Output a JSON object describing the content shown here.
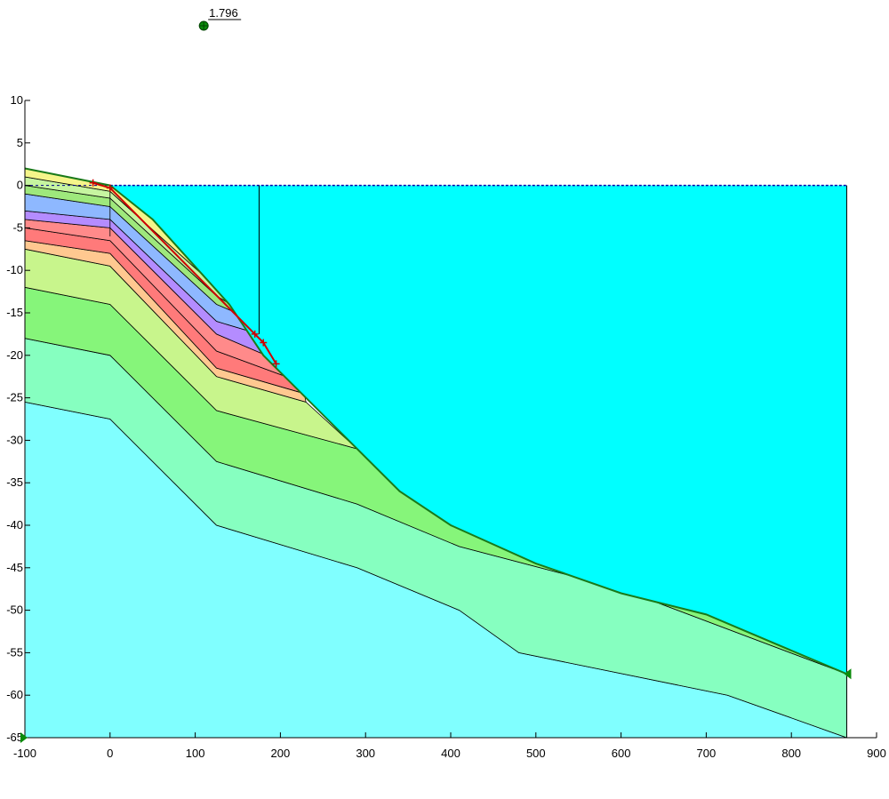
{
  "factor_of_safety": {
    "value": "1.796"
  },
  "axes": {
    "x_ticks": [
      "-100",
      "0",
      "100",
      "200",
      "300",
      "400",
      "500",
      "600",
      "700",
      "800",
      "900"
    ],
    "y_ticks": [
      "10",
      "5",
      "0",
      "-5",
      "-10",
      "-15",
      "-20",
      "-25",
      "-30",
      "-35",
      "-40",
      "-45",
      "-50",
      "-55",
      "-60",
      "-65"
    ],
    "x_range": [
      -100,
      900
    ],
    "y_range": [
      -65,
      10
    ]
  },
  "model": {
    "water_level": 0,
    "ground_surface": [
      [
        -100,
        2
      ],
      [
        0,
        0
      ],
      [
        50,
        -4
      ],
      [
        140,
        -14
      ],
      [
        180,
        -20
      ],
      [
        230,
        -25
      ],
      [
        290,
        -31
      ],
      [
        340,
        -36
      ],
      [
        400,
        -40
      ],
      [
        500,
        -44.5
      ],
      [
        600,
        -48
      ],
      [
        700,
        -50.5
      ],
      [
        865,
        -57.5
      ]
    ],
    "slip_surface": [
      [
        -20,
        0.3
      ],
      [
        0,
        -0.3
      ],
      [
        170,
        -17.5
      ],
      [
        180,
        -18.5
      ],
      [
        195,
        -21
      ]
    ],
    "sea_x_extent": [
      0,
      865
    ],
    "soil_colors": [
      "#f5f58a",
      "#c6f5a0",
      "#9ee87c",
      "#8eb8ff",
      "#b48cff",
      "#ff8a8a",
      "#ff7a7a",
      "#ffc890",
      "#c8f58c",
      "#86f57a",
      "#86ffc0",
      "#80ffff"
    ],
    "water_color": "#00ffff"
  }
}
